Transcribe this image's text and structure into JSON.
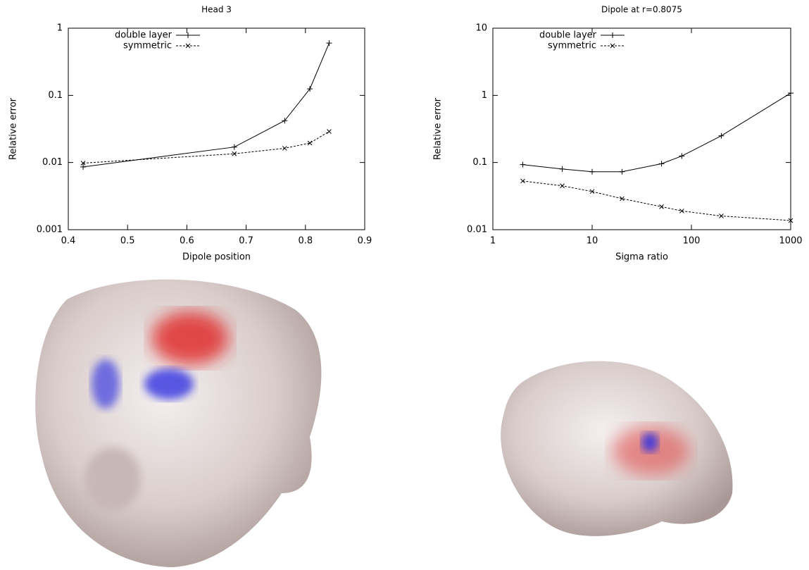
{
  "chart_data": [
    {
      "type": "line",
      "title": "Head 3",
      "x_label": "Dipole position",
      "y_label": "Relative error",
      "x": [
        0.425,
        0.68,
        0.765,
        0.8075,
        0.84
      ],
      "xlim": [
        0.4,
        0.9
      ],
      "xticks": [
        0.4,
        0.5,
        0.6,
        0.7,
        0.8,
        0.9
      ],
      "ylim": [
        0.001,
        1
      ],
      "yticks": [
        0.001,
        0.01,
        0.1,
        1
      ],
      "yscale": "log",
      "xscale": "linear",
      "legend": "top-left",
      "series": [
        {
          "name": "double layer",
          "color": "#000000",
          "style": "solid",
          "marker": "+",
          "values": [
            0.0086,
            0.017,
            0.042,
            0.125,
            0.6
          ]
        },
        {
          "name": "symmetric",
          "color": "#000000",
          "style": "dashed",
          "marker": "x",
          "values": [
            0.0098,
            0.0135,
            0.0163,
            0.0195,
            0.029
          ]
        }
      ]
    },
    {
      "type": "line",
      "title": "Dipole at r=0.8075",
      "x_label": "Sigma ratio",
      "y_label": "Relative error",
      "x": [
        2,
        5,
        10,
        20,
        50,
        80,
        200,
        1000
      ],
      "xlim": [
        1,
        1000
      ],
      "xticks": [
        1,
        10,
        100,
        1000
      ],
      "xscale": "log",
      "ylim": [
        0.01,
        10
      ],
      "yticks": [
        0.01,
        0.1,
        1,
        10
      ],
      "yscale": "log",
      "legend": "top-left",
      "series": [
        {
          "name": "double layer",
          "color": "#000000",
          "style": "solid",
          "marker": "+",
          "values": [
            0.093,
            0.08,
            0.073,
            0.073,
            0.096,
            0.125,
            0.25,
            1.08
          ]
        },
        {
          "name": "symmetric",
          "color": "#000000",
          "style": "dashed",
          "marker": "x",
          "values": [
            0.053,
            0.045,
            0.037,
            0.029,
            0.022,
            0.019,
            0.016,
            0.0137
          ]
        }
      ]
    }
  ]
}
